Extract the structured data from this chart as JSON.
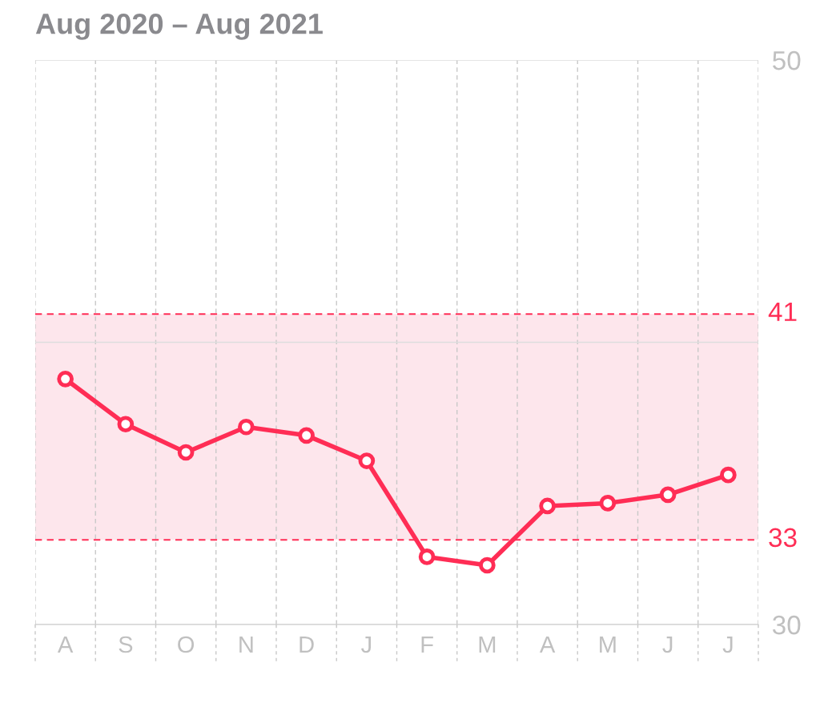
{
  "chart_data": {
    "type": "line",
    "title": "Aug 2020 – Aug 2021",
    "categories": [
      "A",
      "S",
      "O",
      "N",
      "D",
      "J",
      "F",
      "M",
      "A",
      "M",
      "J",
      "J"
    ],
    "series": [
      {
        "color": "#ff2d55",
        "values": [
          38.7,
          37.1,
          36.1,
          37.0,
          36.7,
          35.8,
          32.4,
          32.1,
          34.2,
          34.3,
          34.6,
          35.3
        ]
      }
    ],
    "ylim": [
      30,
      50
    ],
    "yticks": [
      30,
      50
    ],
    "bands": [
      {
        "axis": "y",
        "from": 33,
        "to": 41,
        "color": "#fde6ec"
      }
    ],
    "ref_lines": [
      {
        "axis": "y",
        "value": 40,
        "color": "#dddddd",
        "line_style": "solid"
      },
      {
        "axis": "y",
        "value": 41,
        "label": "41",
        "color": "#ff2d55",
        "line_style": "dashed"
      },
      {
        "axis": "y",
        "value": 33,
        "label": "33",
        "color": "#ff2d55",
        "line_style": "dashed"
      }
    ],
    "grid": true,
    "marker": "circle",
    "line_style": "solid"
  }
}
